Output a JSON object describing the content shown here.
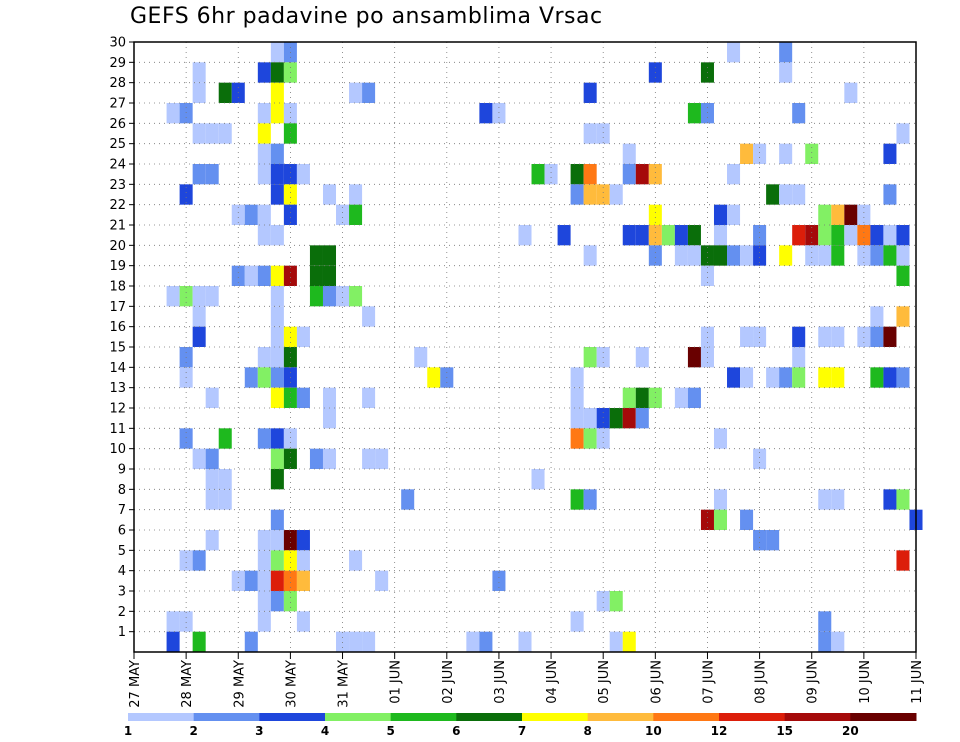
{
  "chart_data": {
    "type": "heatmap",
    "title": "GEFS 6hr padavine po ansamblima Vrsac",
    "xlabel": "",
    "ylabel": "",
    "x_tick_labels": [
      "27 MAY",
      "28 MAY",
      "29 MAY",
      "30 MAY",
      "31 MAY",
      "01 JUN",
      "02 JUN",
      "03 JUN",
      "04 JUN",
      "05 JUN",
      "06 JUN",
      "07 JUN",
      "08 JUN",
      "09 JUN",
      "10 JUN",
      "11 JUN"
    ],
    "y_tick_labels": [
      "1",
      "2",
      "3",
      "4",
      "5",
      "6",
      "7",
      "8",
      "9",
      "10",
      "11",
      "12",
      "13",
      "14",
      "15",
      "16",
      "17",
      "18",
      "19",
      "20",
      "21",
      "22",
      "23",
      "24",
      "25",
      "26",
      "27",
      "28",
      "29",
      "30"
    ],
    "time_steps": 60,
    "ylim": [
      0,
      30
    ],
    "grid": true,
    "grid_style": "dotted",
    "colorbar": {
      "placement": "bottom",
      "labels": [
        "1",
        "2",
        "3",
        "4",
        "5",
        "6",
        "7",
        "8",
        "10",
        "12",
        "15",
        "20"
      ],
      "colors": [
        "#b4c8ff",
        "#6490f0",
        "#1e46dc",
        "#82f064",
        "#1eb91e",
        "#0a6e0a",
        "#ffff00",
        "#ffbb3c",
        "#ff7814",
        "#dc1e0a",
        "#a50a0a",
        "#690000"
      ]
    },
    "cells": [
      [
        11,
        30,
        1
      ],
      [
        12,
        30,
        2
      ],
      [
        46,
        30,
        1
      ],
      [
        50,
        30,
        2
      ],
      [
        5,
        29,
        1
      ],
      [
        10,
        29,
        3
      ],
      [
        11,
        29,
        6
      ],
      [
        12,
        29,
        4
      ],
      [
        40,
        29,
        3
      ],
      [
        44,
        29,
        6
      ],
      [
        50,
        29,
        1
      ],
      [
        5,
        28,
        1
      ],
      [
        7,
        28,
        6
      ],
      [
        8,
        28,
        3
      ],
      [
        11,
        28,
        7
      ],
      [
        17,
        28,
        1
      ],
      [
        18,
        28,
        2
      ],
      [
        35,
        28,
        3
      ],
      [
        55,
        28,
        1
      ],
      [
        3,
        27,
        1
      ],
      [
        4,
        27,
        2
      ],
      [
        10,
        27,
        1
      ],
      [
        11,
        27,
        7
      ],
      [
        12,
        27,
        1
      ],
      [
        27,
        27,
        3
      ],
      [
        28,
        27,
        1
      ],
      [
        43,
        27,
        5
      ],
      [
        44,
        27,
        2
      ],
      [
        51,
        27,
        2
      ],
      [
        5,
        26,
        1
      ],
      [
        6,
        26,
        1
      ],
      [
        7,
        26,
        1
      ],
      [
        10,
        26,
        7
      ],
      [
        12,
        26,
        5
      ],
      [
        35,
        26,
        1
      ],
      [
        36,
        26,
        1
      ],
      [
        59,
        26,
        1
      ],
      [
        10,
        25,
        1
      ],
      [
        11,
        25,
        2
      ],
      [
        38,
        25,
        1
      ],
      [
        47,
        25,
        8
      ],
      [
        48,
        25,
        1
      ],
      [
        50,
        25,
        1
      ],
      [
        52,
        25,
        4
      ],
      [
        58,
        25,
        3
      ],
      [
        5,
        24,
        2
      ],
      [
        6,
        24,
        2
      ],
      [
        10,
        24,
        1
      ],
      [
        11,
        24,
        3
      ],
      [
        12,
        24,
        3
      ],
      [
        13,
        24,
        1
      ],
      [
        31,
        24,
        5
      ],
      [
        32,
        24,
        1
      ],
      [
        34,
        24,
        6
      ],
      [
        35,
        24,
        9
      ],
      [
        38,
        24,
        2
      ],
      [
        39,
        24,
        11
      ],
      [
        40,
        24,
        8
      ],
      [
        46,
        24,
        1
      ],
      [
        4,
        23,
        3
      ],
      [
        11,
        23,
        3
      ],
      [
        12,
        23,
        7
      ],
      [
        15,
        23,
        1
      ],
      [
        17,
        23,
        1
      ],
      [
        34,
        23,
        2
      ],
      [
        35,
        23,
        8
      ],
      [
        36,
        23,
        8
      ],
      [
        37,
        23,
        1
      ],
      [
        49,
        23,
        6
      ],
      [
        50,
        23,
        1
      ],
      [
        51,
        23,
        1
      ],
      [
        58,
        23,
        2
      ],
      [
        8,
        22,
        1
      ],
      [
        9,
        22,
        2
      ],
      [
        10,
        22,
        1
      ],
      [
        12,
        22,
        3
      ],
      [
        16,
        22,
        1
      ],
      [
        17,
        22,
        5
      ],
      [
        40,
        22,
        7
      ],
      [
        45,
        22,
        3
      ],
      [
        46,
        22,
        1
      ],
      [
        53,
        22,
        4
      ],
      [
        54,
        22,
        8
      ],
      [
        55,
        22,
        12
      ],
      [
        56,
        22,
        1
      ],
      [
        10,
        21,
        1
      ],
      [
        11,
        21,
        1
      ],
      [
        30,
        21,
        1
      ],
      [
        33,
        21,
        3
      ],
      [
        38,
        21,
        3
      ],
      [
        39,
        21,
        3
      ],
      [
        40,
        21,
        8
      ],
      [
        41,
        21,
        4
      ],
      [
        42,
        21,
        3
      ],
      [
        43,
        21,
        6
      ],
      [
        45,
        21,
        1
      ],
      [
        48,
        21,
        2
      ],
      [
        51,
        21,
        10
      ],
      [
        52,
        21,
        11
      ],
      [
        53,
        21,
        4
      ],
      [
        54,
        21,
        5
      ],
      [
        55,
        21,
        1
      ],
      [
        56,
        21,
        9
      ],
      [
        57,
        21,
        3
      ],
      [
        58,
        21,
        1
      ],
      [
        59,
        21,
        3
      ],
      [
        14,
        20,
        6
      ],
      [
        15,
        20,
        6
      ],
      [
        35,
        20,
        1
      ],
      [
        40,
        20,
        2
      ],
      [
        42,
        20,
        1
      ],
      [
        43,
        20,
        1
      ],
      [
        44,
        20,
        6
      ],
      [
        45,
        20,
        6
      ],
      [
        46,
        20,
        2
      ],
      [
        47,
        20,
        1
      ],
      [
        48,
        20,
        3
      ],
      [
        50,
        20,
        7
      ],
      [
        52,
        20,
        1
      ],
      [
        53,
        20,
        1
      ],
      [
        54,
        20,
        5
      ],
      [
        56,
        20,
        1
      ],
      [
        57,
        20,
        2
      ],
      [
        58,
        20,
        5
      ],
      [
        59,
        20,
        1
      ],
      [
        14,
        19,
        6
      ],
      [
        15,
        19,
        6
      ],
      [
        8,
        19,
        2
      ],
      [
        9,
        19,
        1
      ],
      [
        10,
        19,
        2
      ],
      [
        11,
        19,
        7
      ],
      [
        12,
        19,
        11
      ],
      [
        44,
        19,
        1
      ],
      [
        59,
        19,
        5
      ],
      [
        3,
        18,
        1
      ],
      [
        4,
        18,
        4
      ],
      [
        5,
        18,
        1
      ],
      [
        6,
        18,
        1
      ],
      [
        11,
        18,
        1
      ],
      [
        14,
        18,
        5
      ],
      [
        15,
        18,
        2
      ],
      [
        16,
        18,
        1
      ],
      [
        17,
        18,
        4
      ],
      [
        5,
        17,
        1
      ],
      [
        11,
        17,
        1
      ],
      [
        18,
        17,
        1
      ],
      [
        57,
        17,
        1
      ],
      [
        59,
        17,
        8
      ],
      [
        5,
        16,
        3
      ],
      [
        11,
        16,
        1
      ],
      [
        12,
        16,
        7
      ],
      [
        13,
        16,
        1
      ],
      [
        44,
        16,
        1
      ],
      [
        47,
        16,
        1
      ],
      [
        48,
        16,
        1
      ],
      [
        51,
        16,
        3
      ],
      [
        53,
        16,
        1
      ],
      [
        54,
        16,
        1
      ],
      [
        56,
        16,
        1
      ],
      [
        57,
        16,
        2
      ],
      [
        58,
        16,
        12
      ],
      [
        4,
        15,
        2
      ],
      [
        10,
        15,
        1
      ],
      [
        11,
        15,
        1
      ],
      [
        12,
        15,
        6
      ],
      [
        22,
        15,
        1
      ],
      [
        35,
        15,
        4
      ],
      [
        36,
        15,
        1
      ],
      [
        39,
        15,
        1
      ],
      [
        43,
        15,
        12
      ],
      [
        44,
        15,
        1
      ],
      [
        51,
        15,
        1
      ],
      [
        4,
        14,
        1
      ],
      [
        9,
        14,
        2
      ],
      [
        10,
        14,
        4
      ],
      [
        11,
        14,
        2
      ],
      [
        12,
        14,
        3
      ],
      [
        23,
        14,
        7
      ],
      [
        24,
        14,
        2
      ],
      [
        34,
        14,
        1
      ],
      [
        46,
        14,
        3
      ],
      [
        47,
        14,
        1
      ],
      [
        49,
        14,
        1
      ],
      [
        50,
        14,
        2
      ],
      [
        51,
        14,
        4
      ],
      [
        53,
        14,
        7
      ],
      [
        54,
        14,
        7
      ],
      [
        57,
        14,
        5
      ],
      [
        58,
        14,
        3
      ],
      [
        59,
        14,
        2
      ],
      [
        6,
        13,
        1
      ],
      [
        11,
        13,
        7
      ],
      [
        12,
        13,
        5
      ],
      [
        13,
        13,
        2
      ],
      [
        15,
        13,
        1
      ],
      [
        18,
        13,
        1
      ],
      [
        34,
        13,
        1
      ],
      [
        38,
        13,
        4
      ],
      [
        39,
        13,
        6
      ],
      [
        40,
        13,
        4
      ],
      [
        42,
        13,
        1
      ],
      [
        43,
        13,
        2
      ],
      [
        15,
        12,
        1
      ],
      [
        34,
        12,
        1
      ],
      [
        35,
        12,
        1
      ],
      [
        36,
        12,
        3
      ],
      [
        37,
        12,
        6
      ],
      [
        38,
        12,
        11
      ],
      [
        39,
        12,
        2
      ],
      [
        4,
        11,
        2
      ],
      [
        7,
        11,
        5
      ],
      [
        10,
        11,
        2
      ],
      [
        11,
        11,
        3
      ],
      [
        12,
        11,
        1
      ],
      [
        34,
        11,
        9
      ],
      [
        35,
        11,
        4
      ],
      [
        36,
        11,
        1
      ],
      [
        45,
        11,
        1
      ],
      [
        5,
        10,
        1
      ],
      [
        6,
        10,
        2
      ],
      [
        11,
        10,
        4
      ],
      [
        12,
        10,
        6
      ],
      [
        14,
        10,
        2
      ],
      [
        15,
        10,
        1
      ],
      [
        18,
        10,
        1
      ],
      [
        19,
        10,
        1
      ],
      [
        48,
        10,
        1
      ],
      [
        6,
        9,
        1
      ],
      [
        7,
        9,
        1
      ],
      [
        11,
        9,
        6
      ],
      [
        31,
        9,
        1
      ],
      [
        6,
        8,
        1
      ],
      [
        7,
        8,
        1
      ],
      [
        21,
        8,
        2
      ],
      [
        34,
        8,
        5
      ],
      [
        35,
        8,
        2
      ],
      [
        45,
        8,
        1
      ],
      [
        53,
        8,
        1
      ],
      [
        54,
        8,
        1
      ],
      [
        58,
        8,
        3
      ],
      [
        59,
        8,
        4
      ],
      [
        11,
        7,
        2
      ],
      [
        44,
        7,
        11
      ],
      [
        45,
        7,
        4
      ],
      [
        47,
        7,
        2
      ],
      [
        60,
        7,
        3
      ],
      [
        6,
        6,
        1
      ],
      [
        10,
        6,
        1
      ],
      [
        11,
        6,
        1
      ],
      [
        12,
        6,
        12
      ],
      [
        13,
        6,
        3
      ],
      [
        48,
        6,
        2
      ],
      [
        49,
        6,
        2
      ],
      [
        4,
        5,
        1
      ],
      [
        5,
        5,
        2
      ],
      [
        10,
        5,
        1
      ],
      [
        11,
        5,
        4
      ],
      [
        12,
        5,
        7
      ],
      [
        13,
        5,
        1
      ],
      [
        17,
        5,
        1
      ],
      [
        59,
        5,
        10
      ],
      [
        8,
        4,
        1
      ],
      [
        9,
        4,
        2
      ],
      [
        10,
        4,
        1
      ],
      [
        11,
        4,
        10
      ],
      [
        12,
        4,
        9
      ],
      [
        13,
        4,
        8
      ],
      [
        19,
        4,
        1
      ],
      [
        28,
        4,
        2
      ],
      [
        10,
        3,
        1
      ],
      [
        11,
        3,
        2
      ],
      [
        12,
        3,
        4
      ],
      [
        36,
        3,
        1
      ],
      [
        37,
        3,
        4
      ],
      [
        3,
        2,
        1
      ],
      [
        4,
        2,
        1
      ],
      [
        10,
        2,
        1
      ],
      [
        13,
        2,
        1
      ],
      [
        34,
        2,
        1
      ],
      [
        53,
        2,
        2
      ],
      [
        3,
        1,
        3
      ],
      [
        5,
        1,
        5
      ],
      [
        9,
        1,
        2
      ],
      [
        16,
        1,
        1
      ],
      [
        17,
        1,
        1
      ],
      [
        18,
        1,
        1
      ],
      [
        26,
        1,
        1
      ],
      [
        27,
        1,
        2
      ],
      [
        30,
        1,
        1
      ],
      [
        37,
        1,
        1
      ],
      [
        38,
        1,
        7
      ],
      [
        53,
        1,
        2
      ],
      [
        54,
        1,
        1
      ]
    ]
  }
}
